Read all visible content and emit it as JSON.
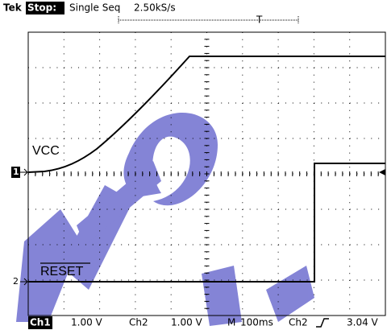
{
  "header": {
    "brand": "Tek",
    "state": "Stop:",
    "mode": "Single Seq",
    "sample_rate": "2.50kS/s",
    "trigger_marker": "T"
  },
  "channels": [
    {
      "marker": "1",
      "label": "VCC"
    },
    {
      "marker": "2",
      "label": "RESET"
    }
  ],
  "footer": {
    "ch1": "Ch1",
    "ch1_scale": "1.00 V",
    "ch2": "Ch2",
    "ch2_scale": "1.00 V",
    "timebase_prefix": "M",
    "timebase": "100ms",
    "trigger_source": "Ch2",
    "trigger_level": "3.04 V"
  }
}
